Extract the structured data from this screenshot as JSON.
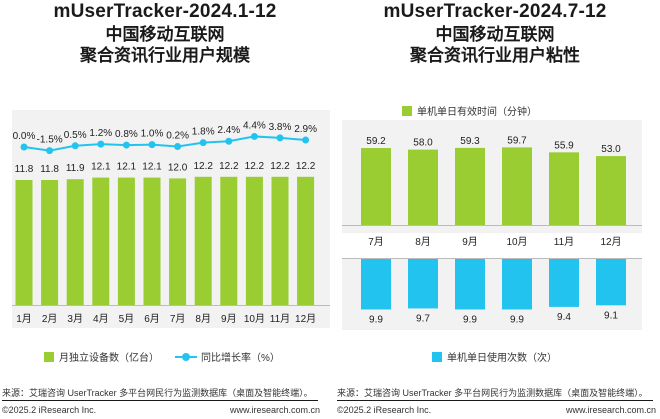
{
  "left": {
    "title_line1": "mUserTracker-2024.1-12",
    "title_line2": "中国移动互联网",
    "title_line3": "聚合资讯行业用户规模",
    "legend_bar": "月独立设备数（亿台）",
    "legend_line": "同比增长率（%）",
    "source": "来源：艾瑞咨询 UserTracker 多平台网民行为监测数据库（桌面及智能终端）。",
    "copyright": "©2025.2 iResearch Inc.",
    "website": "www.iresearch.com.cn"
  },
  "right": {
    "title_line1": "mUserTracker-2024.7-12",
    "title_line2": "中国移动互联网",
    "title_line3": "聚合资讯行业用户粘性",
    "legend_top": "单机单日有效时间（分钟）",
    "legend_bottom": "单机单日使用次数（次）",
    "source": "来源：艾瑞咨询 UserTracker 多平台网民行为监测数据库（桌面及智能终端）。",
    "copyright": "©2025.2 iResearch Inc.",
    "website": "www.iresearch.com.cn"
  },
  "colors": {
    "bar_green": "#9acd32",
    "line_blue": "#22c4ef",
    "bar_blue": "#22c4ef",
    "panel_bg": "#f2f2f2"
  },
  "chart_data": [
    {
      "type": "bar",
      "title": "mUserTracker-2024.1-12 中国移动互联网 聚合资讯行业用户规模",
      "categories": [
        "1月",
        "2月",
        "3月",
        "4月",
        "5月",
        "6月",
        "7月",
        "8月",
        "9月",
        "10月",
        "11月",
        "12月"
      ],
      "series": [
        {
          "name": "月独立设备数（亿台）",
          "type": "bar",
          "values": [
            11.8,
            11.8,
            11.9,
            12.1,
            12.1,
            12.1,
            12.0,
            12.2,
            12.2,
            12.2,
            12.2,
            12.2
          ],
          "labels": [
            "11.8",
            "11.8",
            "11.9",
            "12.1",
            "12.1",
            "12.1",
            "12.0",
            "12.2",
            "12.2",
            "12.2",
            "12.2",
            "12.2"
          ]
        },
        {
          "name": "同比增长率（%）",
          "type": "line",
          "values": [
            0.0,
            -1.5,
            0.5,
            1.2,
            0.8,
            1.0,
            0.2,
            1.8,
            2.4,
            4.4,
            3.8,
            2.9
          ],
          "labels": [
            "0.0%",
            "-1.5%",
            "0.5%",
            "1.2%",
            "0.8%",
            "1.0%",
            "0.2%",
            "1.8%",
            "2.4%",
            "4.4%",
            "3.8%",
            "2.9%"
          ]
        }
      ],
      "legend": "bottom"
    },
    {
      "type": "bar",
      "title": "mUserTracker-2024.7-12 中国移动互联网 聚合资讯行业用户粘性",
      "categories": [
        "7月",
        "8月",
        "9月",
        "10月",
        "11月",
        "12月"
      ],
      "series": [
        {
          "name": "单机单日有效时间（分钟）",
          "values": [
            59.2,
            58.0,
            59.3,
            59.7,
            55.9,
            53.0
          ],
          "labels": [
            "59.2",
            "58.0",
            "59.3",
            "59.7",
            "55.9",
            "53.0"
          ]
        },
        {
          "name": "单机单日使用次数（次）",
          "values": [
            9.9,
            9.7,
            9.9,
            9.9,
            9.4,
            9.1
          ],
          "labels": [
            "9.9",
            "9.7",
            "9.9",
            "9.9",
            "9.4",
            "9.1"
          ]
        }
      ],
      "legend": "top and bottom"
    }
  ]
}
